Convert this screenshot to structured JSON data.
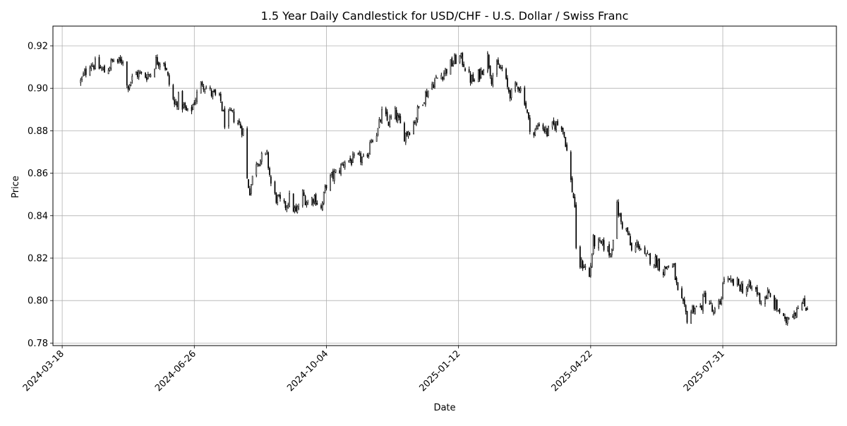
{
  "chart_data": {
    "type": "candlestick",
    "title": "1.5 Year Daily Candlestick for USD/CHF - U.S. Dollar / Swiss Franc",
    "xlabel": "Date",
    "ylabel": "Price",
    "xlim": [
      "2024-03-11",
      "2025-10-25"
    ],
    "ylim": [
      0.7788,
      0.9293
    ],
    "x_ticks": [
      "2024-03-18",
      "2024-06-26",
      "2024-10-04",
      "2025-01-12",
      "2025-04-22",
      "2025-07-31"
    ],
    "y_ticks": [
      0.78,
      0.8,
      0.82,
      0.84,
      0.86,
      0.88,
      0.9,
      0.92
    ],
    "grid": true,
    "legend": "none",
    "candle_color": "#000000",
    "price_points": [
      [
        "2024-04-01",
        0.903
      ],
      [
        "2024-04-08",
        0.912
      ],
      [
        "2024-04-12",
        0.911
      ],
      [
        "2024-04-19",
        0.908
      ],
      [
        "2024-04-26",
        0.913
      ],
      [
        "2024-05-01",
        0.912
      ],
      [
        "2024-05-03",
        0.914
      ],
      [
        "2024-05-06",
        0.901
      ],
      [
        "2024-05-13",
        0.907
      ],
      [
        "2024-05-20",
        0.906
      ],
      [
        "2024-05-24",
        0.907
      ],
      [
        "2024-05-28",
        0.913
      ],
      [
        "2024-06-03",
        0.913
      ],
      [
        "2024-06-07",
        0.902
      ],
      [
        "2024-06-11",
        0.892
      ],
      [
        "2024-06-14",
        0.895
      ],
      [
        "2024-06-19",
        0.89
      ],
      [
        "2024-06-22",
        0.887
      ],
      [
        "2024-06-26",
        0.894
      ],
      [
        "2024-07-02",
        0.903
      ],
      [
        "2024-07-08",
        0.898
      ],
      [
        "2024-07-12",
        0.896
      ],
      [
        "2024-07-16",
        0.894
      ],
      [
        "2024-07-19",
        0.884
      ],
      [
        "2024-07-24",
        0.888
      ],
      [
        "2024-07-29",
        0.884
      ],
      [
        "2024-08-02",
        0.88
      ],
      [
        "2024-08-05",
        0.857
      ],
      [
        "2024-08-07",
        0.852
      ],
      [
        "2024-08-12",
        0.866
      ],
      [
        "2024-08-16",
        0.867
      ],
      [
        "2024-08-20",
        0.868
      ],
      [
        "2024-08-23",
        0.855
      ],
      [
        "2024-08-26",
        0.849
      ],
      [
        "2024-09-02",
        0.844
      ],
      [
        "2024-09-06",
        0.848
      ],
      [
        "2024-09-11",
        0.841
      ],
      [
        "2024-09-16",
        0.85
      ],
      [
        "2024-09-20",
        0.846
      ],
      [
        "2024-09-25",
        0.849
      ],
      [
        "2024-09-30",
        0.843
      ],
      [
        "2024-10-04",
        0.855
      ],
      [
        "2024-10-08",
        0.858
      ],
      [
        "2024-10-14",
        0.862
      ],
      [
        "2024-10-18",
        0.866
      ],
      [
        "2024-10-24",
        0.866
      ],
      [
        "2024-10-30",
        0.867
      ],
      [
        "2024-11-04",
        0.865
      ],
      [
        "2024-11-06",
        0.876
      ],
      [
        "2024-11-12",
        0.88
      ],
      [
        "2024-11-15",
        0.888
      ],
      [
        "2024-11-20",
        0.884
      ],
      [
        "2024-11-25",
        0.888
      ],
      [
        "2024-11-28",
        0.884
      ],
      [
        "2024-12-02",
        0.878
      ],
      [
        "2024-12-05",
        0.88
      ],
      [
        "2024-12-10",
        0.885
      ],
      [
        "2024-12-14",
        0.893
      ],
      [
        "2024-12-18",
        0.897
      ],
      [
        "2024-12-21",
        0.9
      ],
      [
        "2024-12-24",
        0.903
      ],
      [
        "2024-12-31",
        0.907
      ],
      [
        "2025-01-06",
        0.911
      ],
      [
        "2025-01-12",
        0.915
      ],
      [
        "2025-01-16",
        0.912
      ],
      [
        "2025-01-20",
        0.905
      ],
      [
        "2025-01-24",
        0.903
      ],
      [
        "2025-01-29",
        0.908
      ],
      [
        "2025-02-03",
        0.915
      ],
      [
        "2025-02-06",
        0.905
      ],
      [
        "2025-02-10",
        0.91
      ],
      [
        "2025-02-14",
        0.909
      ],
      [
        "2025-02-18",
        0.9
      ],
      [
        "2025-02-21",
        0.897
      ],
      [
        "2025-02-26",
        0.902
      ],
      [
        "2025-03-03",
        0.895
      ],
      [
        "2025-03-06",
        0.884
      ],
      [
        "2025-03-10",
        0.878
      ],
      [
        "2025-03-14",
        0.884
      ],
      [
        "2025-03-20",
        0.879
      ],
      [
        "2025-03-26",
        0.883
      ],
      [
        "2025-03-31",
        0.883
      ],
      [
        "2025-04-03",
        0.875
      ],
      [
        "2025-04-07",
        0.856
      ],
      [
        "2025-04-10",
        0.845
      ],
      [
        "2025-04-11",
        0.822
      ],
      [
        "2025-04-14",
        0.817
      ],
      [
        "2025-04-17",
        0.817
      ],
      [
        "2025-04-21",
        0.811
      ],
      [
        "2025-04-24",
        0.828
      ],
      [
        "2025-04-29",
        0.826
      ],
      [
        "2025-05-02",
        0.826
      ],
      [
        "2025-05-07",
        0.822
      ],
      [
        "2025-05-12",
        0.844
      ],
      [
        "2025-05-15",
        0.837
      ],
      [
        "2025-05-20",
        0.832
      ],
      [
        "2025-05-23",
        0.823
      ],
      [
        "2025-05-28",
        0.827
      ],
      [
        "2025-06-02",
        0.82
      ],
      [
        "2025-06-06",
        0.82
      ],
      [
        "2025-06-12",
        0.818
      ],
      [
        "2025-06-16",
        0.814
      ],
      [
        "2025-06-20",
        0.817
      ],
      [
        "2025-06-24",
        0.815
      ],
      [
        "2025-06-27",
        0.803
      ],
      [
        "2025-07-01",
        0.797
      ],
      [
        "2025-07-04",
        0.792
      ],
      [
        "2025-07-09",
        0.797
      ],
      [
        "2025-07-14",
        0.796
      ],
      [
        "2025-07-17",
        0.802
      ],
      [
        "2025-07-21",
        0.799
      ],
      [
        "2025-07-24",
        0.793
      ],
      [
        "2025-07-29",
        0.799
      ],
      [
        "2025-08-01",
        0.811
      ],
      [
        "2025-08-05",
        0.808
      ],
      [
        "2025-08-11",
        0.808
      ],
      [
        "2025-08-15",
        0.806
      ],
      [
        "2025-08-20",
        0.806
      ],
      [
        "2025-08-25",
        0.805
      ],
      [
        "2025-08-29",
        0.8
      ],
      [
        "2025-09-03",
        0.803
      ],
      [
        "2025-09-08",
        0.798
      ],
      [
        "2025-09-12",
        0.795
      ],
      [
        "2025-09-16",
        0.789
      ],
      [
        "2025-09-19",
        0.794
      ],
      [
        "2025-09-24",
        0.795
      ],
      [
        "2025-09-26",
        0.799
      ],
      [
        "2025-10-03",
        0.797
      ]
    ]
  }
}
